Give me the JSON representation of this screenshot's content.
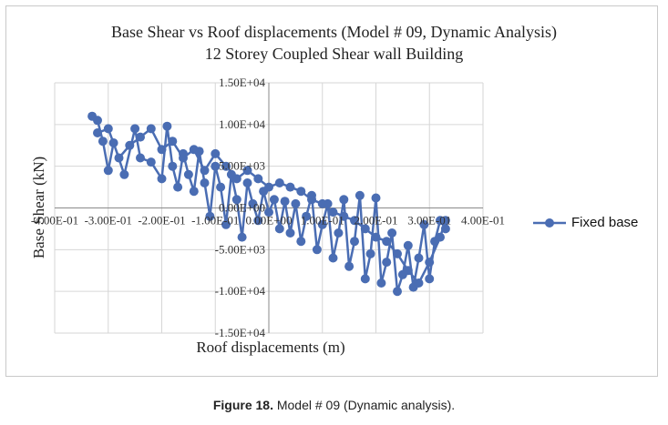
{
  "chart_data": {
    "type": "scatter",
    "title": "Base Shear vs Roof displacements (Model # 09, Dynamic Analysis)",
    "subtitle": "12  Storey Coupled Shear wall Building",
    "xlabel": "Roof displacements (m)",
    "ylabel": "Base Shear (kN)",
    "xlim": [
      -0.4,
      0.4
    ],
    "ylim": [
      -15000,
      15000
    ],
    "x_tick_labels": [
      "-4.00E-01",
      "-3.00E-01",
      "-2.00E-01",
      "-1.00E-01",
      "0.00E+00",
      "1.00E-01",
      "2.00E-01",
      "3.00E-01",
      "4.00E-01"
    ],
    "y_tick_labels": [
      "-1.50E+04",
      "-1.00E+04",
      "-5.00E+03",
      "0.00E+00",
      "5.00E+03",
      "1.00E+04",
      "1.50E+04"
    ],
    "color": "#4a6db3",
    "series": [
      {
        "name": "Fixed base",
        "x": [
          -0.33,
          -0.32,
          -0.31,
          -0.3,
          -0.29,
          -0.27,
          -0.25,
          -0.24,
          -0.22,
          -0.2,
          -0.19,
          -0.18,
          -0.17,
          -0.16,
          -0.15,
          -0.14,
          -0.13,
          -0.12,
          -0.11,
          -0.1,
          -0.09,
          -0.08,
          -0.07,
          -0.06,
          -0.05,
          -0.04,
          -0.03,
          -0.02,
          -0.01,
          0.0,
          0.01,
          0.02,
          0.03,
          0.04,
          0.05,
          0.06,
          0.07,
          0.08,
          0.09,
          0.1,
          0.11,
          0.12,
          0.13,
          0.14,
          0.15,
          0.16,
          0.17,
          0.18,
          0.19,
          0.2,
          0.21,
          0.22,
          0.23,
          0.24,
          0.25,
          0.26,
          0.27,
          0.28,
          0.29,
          0.3,
          0.31,
          0.32,
          0.33,
          0.33,
          0.32,
          0.3,
          0.28,
          0.26,
          0.24,
          0.22,
          0.2,
          0.18,
          0.16,
          0.14,
          0.12,
          0.1,
          0.08,
          0.06,
          0.04,
          0.02,
          0.0,
          -0.02,
          -0.04,
          -0.06,
          -0.08,
          -0.1,
          -0.12,
          -0.14,
          -0.16,
          -0.18,
          -0.2,
          -0.22,
          -0.24,
          -0.26,
          -0.28,
          -0.3,
          -0.32
        ],
        "y": [
          11000,
          10500,
          8000,
          4500,
          7800,
          4000,
          9500,
          6000,
          5500,
          3500,
          9800,
          5000,
          2500,
          6500,
          4000,
          2000,
          6800,
          3000,
          -1000,
          5000,
          2500,
          -2000,
          4000,
          1000,
          -3500,
          3000,
          500,
          -1500,
          2000,
          -500,
          1000,
          -2500,
          800,
          -3000,
          500,
          -4000,
          -1000,
          1500,
          -5000,
          -2000,
          500,
          -6000,
          -3000,
          1000,
          -7000,
          -4000,
          1500,
          -8500,
          -5500,
          1200,
          -9000,
          -6500,
          -3000,
          -10000,
          -8000,
          -4500,
          -9500,
          -6000,
          -2000,
          -8500,
          -4000,
          -1500,
          -2500,
          -1500,
          -3500,
          -6500,
          -9000,
          -7500,
          -5500,
          -4000,
          -3500,
          -2500,
          -1500,
          -1000,
          -500,
          500,
          1000,
          2000,
          2500,
          3000,
          2500,
          3500,
          4500,
          3500,
          5000,
          6500,
          4500,
          7000,
          6000,
          8000,
          7000,
          9500,
          8500,
          7500,
          6000,
          9500,
          9000
        ]
      }
    ]
  },
  "legend": {
    "label": "Fixed base"
  },
  "caption": {
    "label": "Figure 18.",
    "text": " Model # 09 (Dynamic analysis)."
  }
}
